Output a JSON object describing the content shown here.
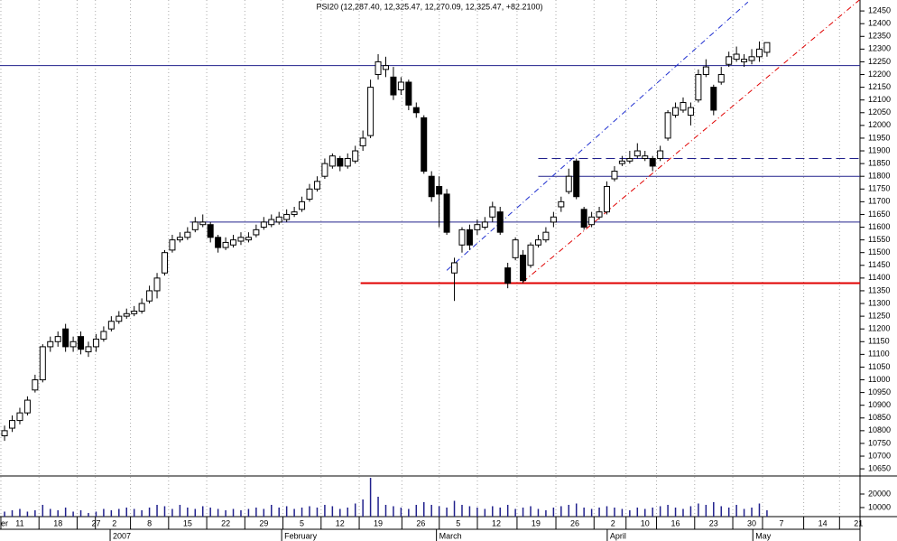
{
  "chart_data": {
    "type": "candlestick",
    "title": "PSI20 (12,287.40, 12,325.47, 12,270.09, 12,325.47, +82.2100)",
    "open": [
      10780,
      10810,
      10840,
      10870,
      10960,
      11000,
      11130,
      11150,
      11200,
      11130,
      11170,
      11110,
      11130,
      11160,
      11200,
      11230,
      11250,
      11260,
      11270,
      11310,
      11350,
      11420,
      11510,
      11550,
      11560,
      11590,
      11610,
      11610,
      11560,
      11520,
      11530,
      11545,
      11550,
      11570,
      11600,
      11610,
      11620,
      11630,
      11650,
      11670,
      11710,
      11750,
      11800,
      11840,
      11870,
      11840,
      11860,
      11920,
      11960,
      12200,
      12220,
      12190,
      12140,
      12170,
      12070,
      12030,
      11800,
      11760,
      11730,
      11420,
      11530,
      11590,
      11590,
      11600,
      11640,
      11660,
      11440,
      11480,
      11490,
      11450,
      11530,
      11550,
      11620,
      11680,
      11740,
      11860,
      11670,
      11610,
      11640,
      11660,
      11790,
      11850,
      11860,
      11880,
      11870,
      11870,
      11870,
      11950,
      12040,
      12060,
      12040,
      12100,
      12200,
      12150,
      12170,
      12240,
      12260,
      12250,
      12255,
      12270,
      12287.4
    ],
    "high": [
      10820,
      10860,
      10890,
      10935,
      11020,
      11140,
      11170,
      11190,
      11220,
      11170,
      11190,
      11150,
      11180,
      11210,
      11250,
      11270,
      11280,
      11290,
      11320,
      11370,
      11420,
      11510,
      11570,
      11580,
      11600,
      11640,
      11650,
      11620,
      11570,
      11560,
      11570,
      11580,
      11580,
      11610,
      11640,
      11650,
      11660,
      11670,
      11680,
      11720,
      11770,
      11800,
      11870,
      11890,
      11880,
      11890,
      11920,
      11980,
      12180,
      12280,
      12270,
      12230,
      12190,
      12180,
      12090,
      12040,
      11820,
      11800,
      11750,
      11480,
      11600,
      11610,
      11630,
      11640,
      11700,
      11680,
      11460,
      11560,
      11510,
      11540,
      11570,
      11600,
      11660,
      11720,
      11830,
      11870,
      11680,
      11660,
      11680,
      11780,
      11840,
      11880,
      11900,
      11930,
      11900,
      11880,
      11920,
      12060,
      12090,
      12110,
      12090,
      12220,
      12260,
      12160,
      12230,
      12290,
      12310,
      12280,
      12300,
      12330,
      12325.47
    ],
    "low": [
      10760,
      10795,
      10825,
      10860,
      10950,
      10990,
      11110,
      11130,
      11110,
      11110,
      11100,
      11090,
      11110,
      11150,
      11190,
      11220,
      11240,
      11250,
      11260,
      11300,
      11320,
      11410,
      11500,
      11540,
      11550,
      11580,
      11600,
      11540,
      11500,
      11510,
      11520,
      11530,
      11540,
      11560,
      11590,
      11600,
      11610,
      11620,
      11640,
      11660,
      11700,
      11740,
      11790,
      11830,
      11820,
      11830,
      11850,
      11900,
      11950,
      12180,
      12190,
      12100,
      12120,
      12060,
      12030,
      11810,
      11700,
      11600,
      11570,
      11310,
      11500,
      11510,
      11570,
      11590,
      11620,
      11570,
      11360,
      11470,
      11380,
      11440,
      11520,
      11540,
      11600,
      11660,
      11730,
      11710,
      11590,
      11600,
      11630,
      11650,
      11780,
      11840,
      11850,
      11870,
      11860,
      11820,
      11860,
      11940,
      12030,
      12050,
      12000,
      12090,
      12190,
      12040,
      12160,
      12230,
      12250,
      12230,
      12240,
      12250,
      12270.09
    ],
    "close": [
      10800,
      10840,
      10870,
      10920,
      11000,
      11130,
      11150,
      11170,
      11130,
      11150,
      11120,
      11130,
      11160,
      11190,
      11230,
      11250,
      11260,
      11270,
      11300,
      11350,
      11400,
      11500,
      11550,
      11560,
      11580,
      11620,
      11620,
      11560,
      11520,
      11540,
      11550,
      11560,
      11560,
      11590,
      11620,
      11630,
      11640,
      11650,
      11660,
      11700,
      11750,
      11780,
      11850,
      11880,
      11840,
      11870,
      11900,
      11950,
      12150,
      12250,
      12235,
      12120,
      12170,
      12080,
      12050,
      11820,
      11720,
      11730,
      11580,
      11460,
      11590,
      11530,
      11610,
      11620,
      11680,
      11580,
      11380,
      11550,
      11390,
      11530,
      11550,
      11580,
      11640,
      11700,
      11800,
      11720,
      11600,
      11640,
      11660,
      11760,
      11820,
      11860,
      11870,
      11900,
      11880,
      11840,
      11900,
      12050,
      12070,
      12090,
      12070,
      12200,
      12230,
      12060,
      12200,
      12270,
      12280,
      12260,
      12270,
      12300,
      12325.47
    ],
    "volume": [
      7000,
      8000,
      9000,
      7000,
      8000,
      12000,
      9000,
      8000,
      10000,
      7000,
      8000,
      6000,
      7000,
      9000,
      8000,
      9000,
      10000,
      9000,
      8000,
      10000,
      12000,
      11000,
      9000,
      12000,
      10000,
      9000,
      11000,
      10000,
      9000,
      8000,
      9000,
      8000,
      9000,
      10000,
      9000,
      12000,
      10000,
      11000,
      9000,
      10000,
      11000,
      10000,
      12000,
      11000,
      9000,
      10000,
      13000,
      16000,
      32000,
      18000,
      12000,
      11000,
      10000,
      9000,
      12000,
      14000,
      12000,
      11000,
      10000,
      15000,
      12000,
      11000,
      10000,
      9000,
      11000,
      10000,
      12000,
      9000,
      10000,
      11000,
      9000,
      8000,
      10000,
      11000,
      12000,
      13000,
      10000,
      9000,
      10000,
      11000,
      10000,
      9000,
      8000,
      10000,
      9000,
      10000,
      11000,
      12000,
      10000,
      9000,
      11000,
      13000,
      12000,
      14000,
      11000,
      10000,
      12000,
      9000,
      10000,
      13000,
      8000
    ],
    "xlim": [
      -0.6,
      112.2
    ],
    "ylim": [
      10622,
      12493
    ],
    "yticks": [
      10650,
      10700,
      10750,
      10800,
      10850,
      10900,
      10950,
      11000,
      11050,
      11100,
      11150,
      11200,
      11250,
      11300,
      11350,
      11400,
      11450,
      11500,
      11550,
      11600,
      11650,
      11700,
      11750,
      11800,
      11850,
      11900,
      11950,
      12000,
      12050,
      12100,
      12150,
      12200,
      12250,
      12300,
      12350,
      12400,
      12450
    ],
    "volume_ylim": [
      3300,
      32700
    ],
    "volume_ticks": [
      10000,
      20000
    ],
    "xticks": [
      {
        "value": 0,
        "label": "er"
      },
      {
        "value": 2,
        "label": "11"
      },
      {
        "value": 7,
        "label": "18"
      },
      {
        "value": 12,
        "label": "27"
      },
      {
        "value": 14.4,
        "label": "2"
      },
      {
        "value": 19,
        "label": "8"
      },
      {
        "value": 24,
        "label": "15"
      },
      {
        "value": 29,
        "label": "22"
      },
      {
        "value": 34,
        "label": "29"
      },
      {
        "value": 39,
        "label": "5"
      },
      {
        "value": 44,
        "label": "12"
      },
      {
        "value": 49,
        "label": "19"
      },
      {
        "value": 54.6,
        "label": "26"
      },
      {
        "value": 59.5,
        "label": "5"
      },
      {
        "value": 64.5,
        "label": "12"
      },
      {
        "value": 69.7,
        "label": "19"
      },
      {
        "value": 74.8,
        "label": "26"
      },
      {
        "value": 79.8,
        "label": "2"
      },
      {
        "value": 84,
        "label": "10"
      },
      {
        "value": 88,
        "label": "16"
      },
      {
        "value": 93,
        "label": "23"
      },
      {
        "value": 98,
        "label": "30"
      },
      {
        "value": 101.9,
        "label": "7"
      },
      {
        "value": 107.3,
        "label": "14"
      },
      {
        "value": 112,
        "label": "21"
      }
    ],
    "months": [
      {
        "value": 14.2,
        "label": "2007"
      },
      {
        "value": 36.7,
        "label": "February"
      },
      {
        "value": 57,
        "label": "March"
      },
      {
        "value": 79.4,
        "label": "April"
      },
      {
        "value": 98.5,
        "label": "May"
      }
    ],
    "lines": [
      {
        "x": [
          -0.6,
          112.2
        ],
        "y": [
          12235,
          12235
        ],
        "color": "#20208c",
        "style": "solid"
      },
      {
        "x": [
          24.3,
          112.2
        ],
        "y": [
          11620,
          11620
        ],
        "color": "#20208c",
        "style": "solid"
      },
      {
        "x": [
          46.7,
          112.2
        ],
        "y": [
          11380,
          11380
        ],
        "color": "#e00000",
        "style": "thick"
      },
      {
        "x": [
          70,
          112.2
        ],
        "y": [
          11870,
          11870
        ],
        "color": "#20208c",
        "style": "dashed"
      },
      {
        "x": [
          70,
          112.2
        ],
        "y": [
          11800,
          11800
        ],
        "color": "#20208c",
        "style": "solid"
      },
      {
        "x": [
          58,
          97.5
        ],
        "y": [
          11430,
          12485
        ],
        "color": "#2030d0",
        "style": "dashdot"
      },
      {
        "x": [
          68,
          112.2
        ],
        "y": [
          11385,
          12495
        ],
        "color": "#e00000",
        "style": "dashdot"
      }
    ],
    "up_color": "#ffffff",
    "down_color": "#000000",
    "grid": true
  }
}
